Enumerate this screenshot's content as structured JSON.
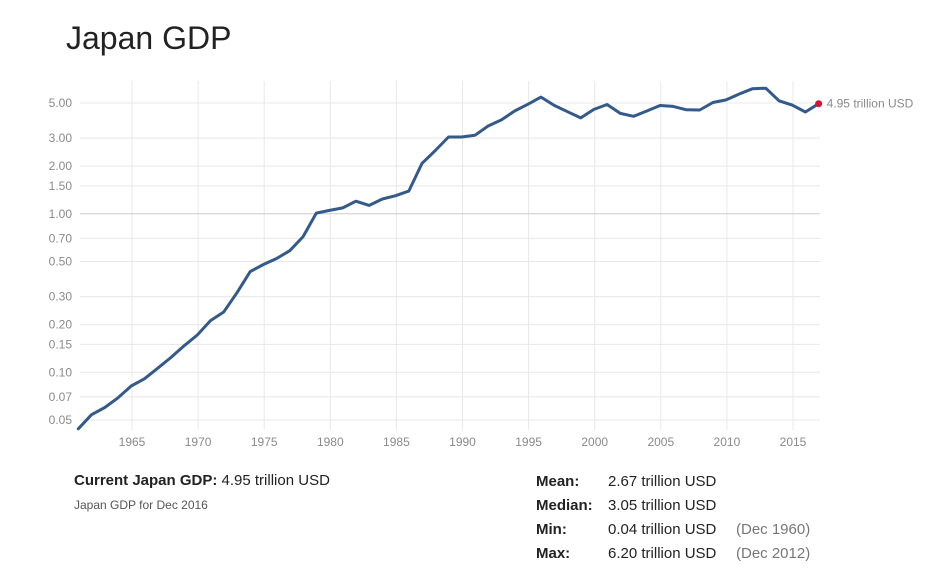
{
  "title": "Japan GDP",
  "current": {
    "label": "Current Japan GDP:",
    "value": "4.95 trillion USD",
    "subtitle": "Japan GDP for Dec 2016"
  },
  "stats": [
    {
      "label": "Mean:",
      "value": "2.67 trillion USD",
      "date": ""
    },
    {
      "label": "Median:",
      "value": "3.05 trillion USD",
      "date": ""
    },
    {
      "label": "Min:",
      "value": "0.04 trillion USD",
      "date": "(Dec 1960)"
    },
    {
      "label": "Max:",
      "value": "6.20 trillion USD",
      "date": "(Dec 2012)"
    }
  ],
  "colors": {
    "line": "#335a8a",
    "endpoint": "#e0102f",
    "grid": "#e8e8e8",
    "baseline": "#cccccc"
  },
  "chart_data": {
    "type": "line",
    "title": "Japan GDP",
    "xlabel": "",
    "ylabel": "",
    "yscale": "log",
    "units": "trillion USD",
    "ylim": [
      0.045,
      6.7
    ],
    "xlim": [
      1960,
      2016
    ],
    "grid": true,
    "legend": "none",
    "y_ticks": [
      {
        "value": 5.0,
        "label": "5.00"
      },
      {
        "value": 3.0,
        "label": "3.00"
      },
      {
        "value": 2.0,
        "label": "2.00"
      },
      {
        "value": 1.5,
        "label": "1.50"
      },
      {
        "value": 1.0,
        "label": "1.00"
      },
      {
        "value": 0.7,
        "label": "0.70"
      },
      {
        "value": 0.5,
        "label": "0.50"
      },
      {
        "value": 0.3,
        "label": "0.30"
      },
      {
        "value": 0.2,
        "label": "0.20"
      },
      {
        "value": 0.15,
        "label": "0.15"
      },
      {
        "value": 0.1,
        "label": "0.10"
      },
      {
        "value": 0.07,
        "label": "0.07"
      },
      {
        "value": 0.05,
        "label": "0.05"
      }
    ],
    "x_ticks": [
      "1965",
      "1970",
      "1975",
      "1980",
      "1985",
      "1990",
      "1995",
      "2000",
      "2005",
      "2010",
      "2015"
    ],
    "end_label": "4.95 trillion USD",
    "series": [
      {
        "name": "Japan GDP",
        "x": [
          1960,
          1961,
          1962,
          1963,
          1964,
          1965,
          1966,
          1967,
          1968,
          1969,
          1970,
          1971,
          1972,
          1973,
          1974,
          1975,
          1976,
          1977,
          1978,
          1979,
          1980,
          1981,
          1982,
          1983,
          1984,
          1985,
          1986,
          1987,
          1988,
          1989,
          1990,
          1991,
          1992,
          1993,
          1994,
          1995,
          1996,
          1997,
          1998,
          1999,
          2000,
          2001,
          2002,
          2003,
          2004,
          2005,
          2006,
          2007,
          2008,
          2009,
          2010,
          2011,
          2012,
          2013,
          2014,
          2015,
          2016
        ],
        "values": [
          0.044,
          0.054,
          0.06,
          0.069,
          0.082,
          0.091,
          0.106,
          0.124,
          0.147,
          0.172,
          0.212,
          0.24,
          0.318,
          0.432,
          0.479,
          0.522,
          0.585,
          0.718,
          1.01,
          1.05,
          1.09,
          1.2,
          1.13,
          1.24,
          1.3,
          1.39,
          2.08,
          2.51,
          3.05,
          3.05,
          3.13,
          3.58,
          3.91,
          4.45,
          4.91,
          5.45,
          4.83,
          4.41,
          4.03,
          4.56,
          4.89,
          4.3,
          4.12,
          4.45,
          4.82,
          4.76,
          4.53,
          4.52,
          5.04,
          5.23,
          5.7,
          6.16,
          6.2,
          5.16,
          4.85,
          4.39,
          4.95
        ]
      }
    ]
  }
}
